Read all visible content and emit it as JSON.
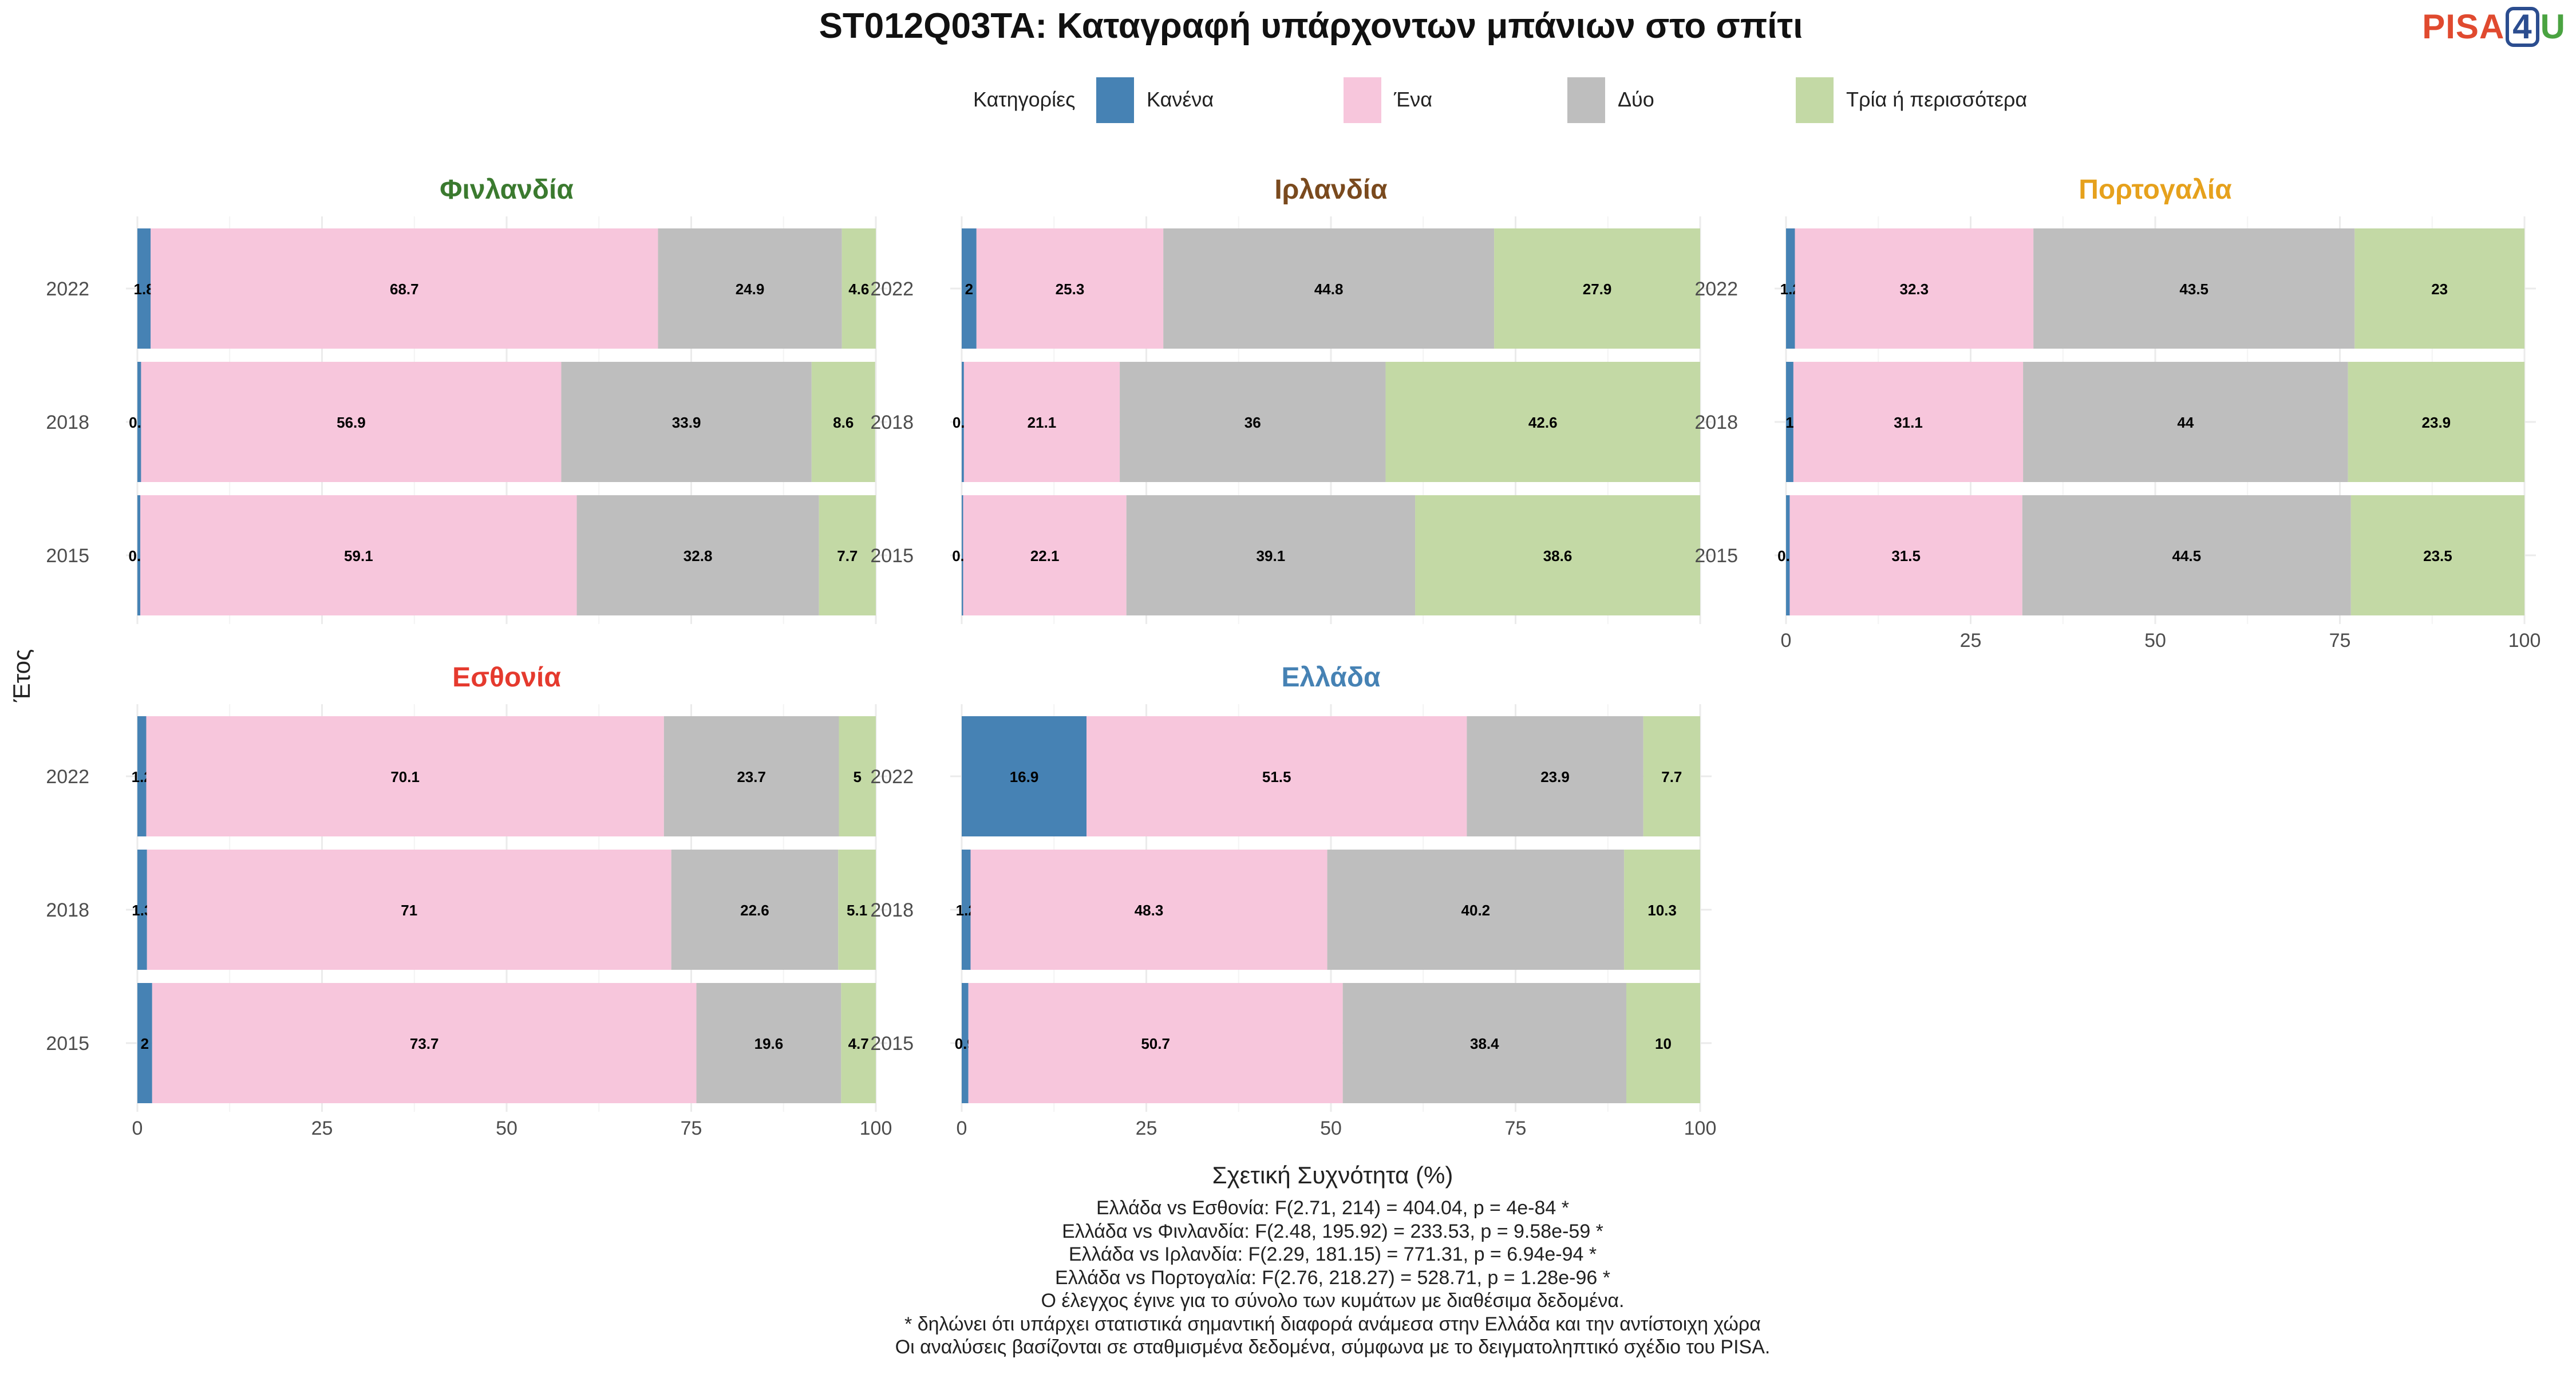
{
  "chart_data": {
    "type": "bar",
    "orientation": "horizontal",
    "stacked": true,
    "title": "ST012Q03TA: Καταγραφή υπάρχοντων μπάνιων στο σπίτι",
    "xlabel": "Σχετική Συχνότητα (%)",
    "ylabel": "Έτος",
    "xlim": [
      0,
      100
    ],
    "xticks": [
      "0",
      "25",
      "50",
      "75",
      "100"
    ],
    "legend_title": "Κατηγορίες",
    "legend_position": "top",
    "categories": [
      "Κανένα",
      "Ένα",
      "Δύο",
      "Τρία ή περισσότερα"
    ],
    "colors": [
      "#4682b4",
      "#f7c6dc",
      "#bebebe",
      "#c3d9a5"
    ],
    "years": [
      "2022",
      "2018",
      "2015"
    ],
    "panels": [
      {
        "country": "Φινλανδία",
        "color": "#3b7a2f",
        "rows": [
          {
            "year": "2022",
            "values": [
              1.8,
              68.7,
              24.9,
              4.6
            ]
          },
          {
            "year": "2018",
            "values": [
              0.5,
              56.9,
              33.9,
              8.6
            ]
          },
          {
            "year": "2015",
            "values": [
              0.4,
              59.1,
              32.8,
              7.7
            ]
          }
        ]
      },
      {
        "country": "Ιρλανδία",
        "color": "#7a4a1e",
        "rows": [
          {
            "year": "2022",
            "values": [
              2,
              25.3,
              44.8,
              27.9
            ]
          },
          {
            "year": "2018",
            "values": [
              0.3,
              21.1,
              36,
              42.6
            ]
          },
          {
            "year": "2015",
            "values": [
              0.2,
              22.1,
              39.1,
              38.6
            ]
          }
        ]
      },
      {
        "country": "Πορτογαλία",
        "color": "#e6a11c",
        "rows": [
          {
            "year": "2022",
            "values": [
              1.2,
              32.3,
              43.5,
              23
            ]
          },
          {
            "year": "2018",
            "values": [
              1,
              31.1,
              44,
              23.9
            ]
          },
          {
            "year": "2015",
            "values": [
              0.5,
              31.5,
              44.5,
              23.5
            ]
          }
        ]
      },
      {
        "country": "Εσθονία",
        "color": "#e53a2e",
        "rows": [
          {
            "year": "2022",
            "values": [
              1.2,
              70.1,
              23.7,
              5
            ]
          },
          {
            "year": "2018",
            "values": [
              1.3,
              71,
              22.6,
              5.1
            ]
          },
          {
            "year": "2015",
            "values": [
              2,
              73.7,
              19.6,
              4.7
            ]
          }
        ]
      },
      {
        "country": "Ελλάδα",
        "color": "#4682b4",
        "rows": [
          {
            "year": "2022",
            "values": [
              16.9,
              51.5,
              23.9,
              7.7
            ]
          },
          {
            "year": "2018",
            "values": [
              1.2,
              48.3,
              40.2,
              10.3
            ]
          },
          {
            "year": "2015",
            "values": [
              0.9,
              50.7,
              38.4,
              10
            ]
          }
        ]
      }
    ],
    "footnotes": [
      "Ελλάδα vs Εσθονία: F(2.71, 214) = 404.04, p = 4e-84 *",
      "Ελλάδα vs Φινλανδία: F(2.48, 195.92) = 233.53, p = 9.58e-59 *",
      "Ελλάδα vs Ιρλανδία: F(2.29, 181.15) = 771.31, p = 6.94e-94 *",
      "Ελλάδα vs Πορτογαλία: F(2.76, 218.27) = 528.71, p = 1.28e-96 *",
      "Ο έλεγχος έγινε για το σύνολο των κυμάτων με διαθέσιμα δεδομένα.",
      "* δηλώνει ότι υπάρχει στατιστικά σημαντική διαφορά ανάμεσα στην Ελλάδα και την αντίστοιχη χώρα",
      "Οι αναλύσεις βασίζονται σε σταθμισμένα δεδομένα, σύμφωνα με το δειγματοληπτικό σχέδιο του PISA."
    ]
  },
  "logo": {
    "part1": "PISA",
    "part2": "4",
    "part3": "U"
  }
}
